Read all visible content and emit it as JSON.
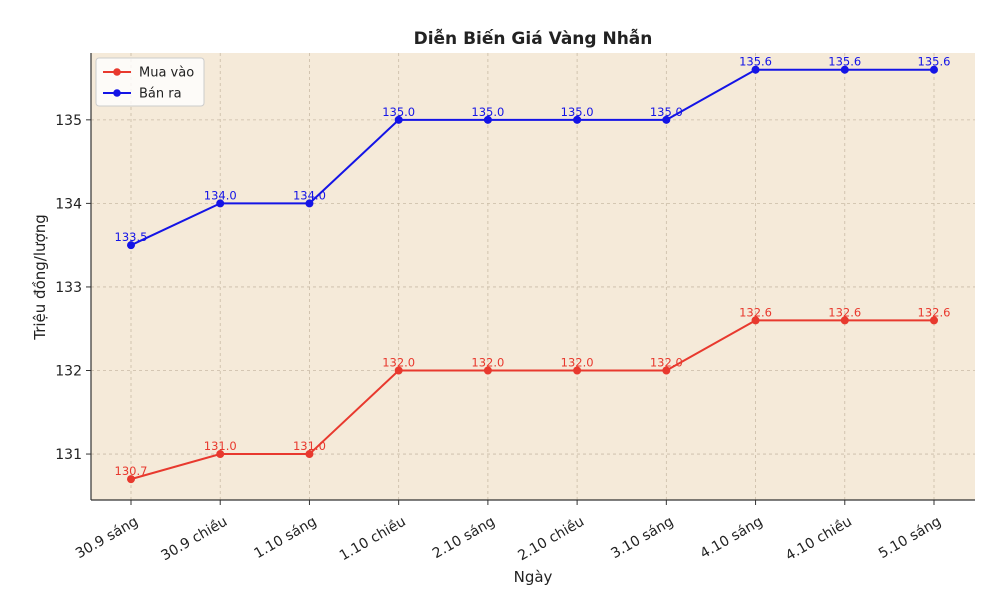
{
  "chart_data": {
    "type": "line",
    "title": "Diễn Biến Giá Vàng Nhẫn",
    "xlabel": "Ngày",
    "ylabel": "Triệu đồng/lượng",
    "categories": [
      "30.9 sáng",
      "30.9 chiều",
      "1.10 sáng",
      "1.10 chiều",
      "2.10 sáng",
      "2.10 chiều",
      "3.10 sáng",
      "4.10 sáng",
      "4.10 chiều",
      "5.10 sáng"
    ],
    "series": [
      {
        "name": "Mua vào",
        "color": "#e8392e",
        "values": [
          130.7,
          131.0,
          131.0,
          132.0,
          132.0,
          132.0,
          132.0,
          132.6,
          132.6,
          132.6
        ],
        "labels": [
          "130.7",
          "131.0",
          "131.0",
          "132.0",
          "132.0",
          "132.0",
          "132.0",
          "132.6",
          "132.6",
          "132.6"
        ]
      },
      {
        "name": "Bán ra",
        "color": "#1414e6",
        "values": [
          133.5,
          134.0,
          134.0,
          135.0,
          135.0,
          135.0,
          135.0,
          135.6,
          135.6,
          135.6
        ],
        "labels": [
          "133.5",
          "134.0",
          "134.0",
          "135.0",
          "135.0",
          "135.0",
          "135.0",
          "135.6",
          "135.6",
          "135.6"
        ]
      }
    ],
    "yticks": [
      "131",
      "132",
      "133",
      "134",
      "135"
    ],
    "ylim": [
      130.45,
      135.8
    ],
    "grid": true,
    "legend": "top-left",
    "plot_background": "#f5ead9"
  }
}
